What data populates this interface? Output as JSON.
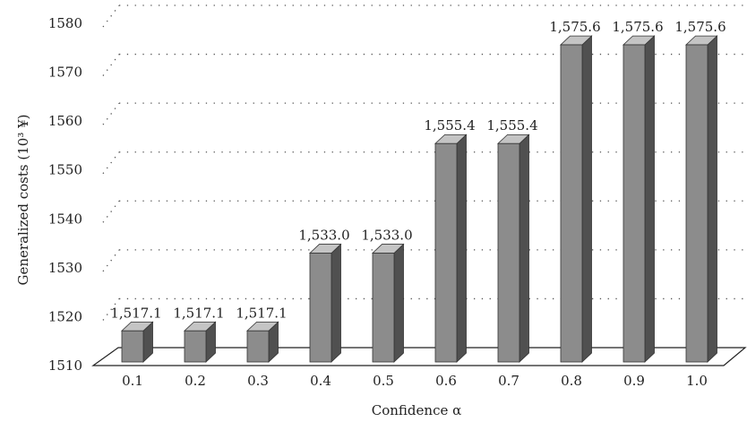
{
  "chart_data": {
    "type": "bar",
    "categories": [
      "0.1",
      "0.2",
      "0.3",
      "0.4",
      "0.5",
      "0.6",
      "0.7",
      "0.8",
      "0.9",
      "1.0"
    ],
    "values": [
      1517.1,
      1517.1,
      1517.1,
      1533.0,
      1533.0,
      1555.4,
      1555.4,
      1575.6,
      1575.6,
      1575.6
    ],
    "data_labels": [
      "1,517.1",
      "1,517.1",
      "1,517.1",
      "1,533.0",
      "1,533.0",
      "1,555.4",
      "1,555.4",
      "1,575.6",
      "1,575.6",
      "1,575.6"
    ],
    "title": "",
    "xlabel": "Confidence α",
    "ylabel": "Generalized costs (10³ ¥)",
    "ylim": [
      1510,
      1580
    ],
    "yticks": [
      "1510",
      "1520",
      "1530",
      "1540",
      "1550",
      "1560",
      "1570",
      "1580"
    ],
    "grid": "dotted horizontal",
    "style": "3d",
    "colors": {
      "bar_front": "#8c8c8c",
      "bar_top": "#c4c4c4",
      "bar_side": "#505050",
      "grid": "#555555",
      "text": "#222222"
    }
  }
}
